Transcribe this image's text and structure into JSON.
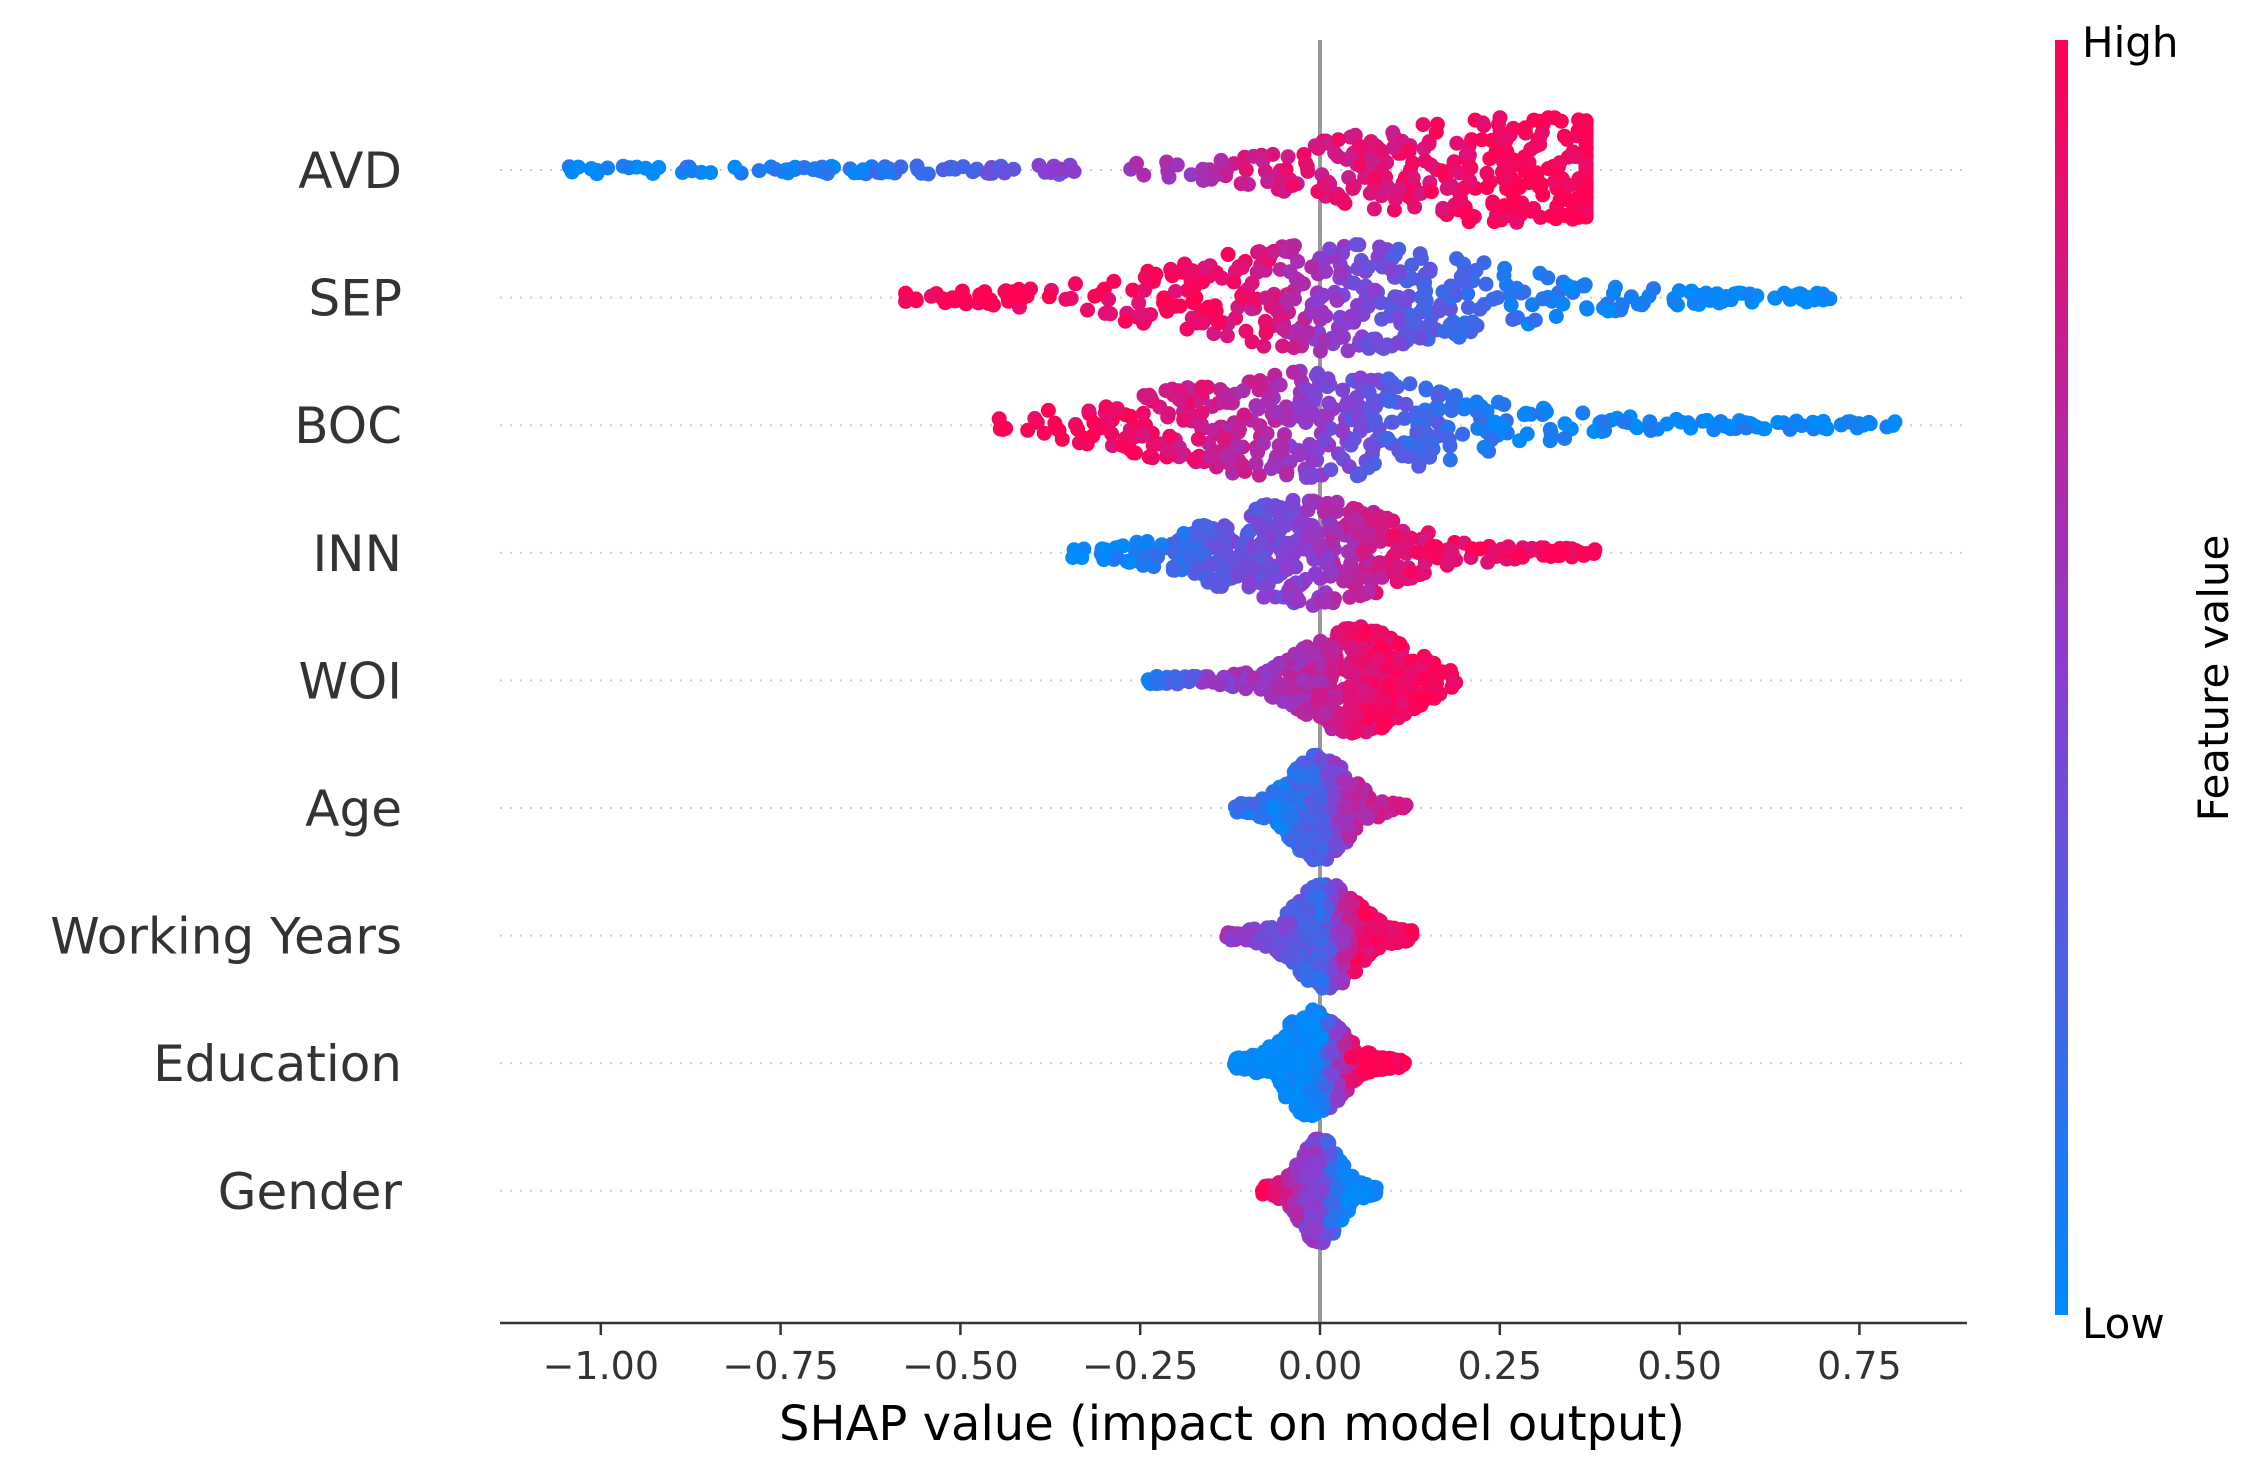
{
  "chart_data": {
    "type": "scatter",
    "subtype": "shap-beeswarm",
    "title": "",
    "xlabel": "SHAP value (impact on model output)",
    "xlim": [
      -1.15,
      0.9
    ],
    "xticks": [
      -1.0,
      -0.75,
      -0.5,
      -0.25,
      0.0,
      0.25,
      0.5,
      0.75
    ],
    "xtick_labels": [
      "−1.00",
      "−0.75",
      "−0.50",
      "−0.25",
      "0.00",
      "0.25",
      "0.50",
      "0.75"
    ],
    "colorbar": {
      "title": "Feature value",
      "high_label": "High",
      "low_label": "Low",
      "high_color": "#ff0052",
      "mid_color": "#8a3ed1",
      "low_color": "#008bfb"
    },
    "features": [
      {
        "name": "AVD",
        "min": -1.05,
        "max": 0.37,
        "dense_center": 0.27,
        "samples": [
          {
            "shap": -1.05,
            "value": 0.0
          },
          {
            "shap": -0.85,
            "value": 0.05
          },
          {
            "shap": -0.75,
            "value": 0.1
          },
          {
            "shap": -0.65,
            "value": 0.1
          },
          {
            "shap": -0.5,
            "value": 0.3
          },
          {
            "shap": -0.35,
            "value": 0.5
          },
          {
            "shap": -0.2,
            "value": 0.6
          },
          {
            "shap": -0.1,
            "value": 0.8
          },
          {
            "shap": 0.0,
            "value": 0.85
          },
          {
            "shap": 0.1,
            "value": 0.85
          },
          {
            "shap": 0.2,
            "value": 0.95
          },
          {
            "shap": 0.27,
            "value": 1.0
          },
          {
            "shap": 0.35,
            "value": 1.0
          }
        ]
      },
      {
        "name": "SEP",
        "min": -0.58,
        "max": 0.72,
        "dense_center": 0.02,
        "samples": [
          {
            "shap": -0.58,
            "value": 1.0
          },
          {
            "shap": -0.45,
            "value": 1.0
          },
          {
            "shap": -0.35,
            "value": 0.95
          },
          {
            "shap": -0.2,
            "value": 0.95
          },
          {
            "shap": -0.08,
            "value": 0.85
          },
          {
            "shap": 0.0,
            "value": 0.55
          },
          {
            "shap": 0.05,
            "value": 0.45
          },
          {
            "shap": 0.15,
            "value": 0.3
          },
          {
            "shap": 0.3,
            "value": 0.1
          },
          {
            "shap": 0.45,
            "value": 0.05
          },
          {
            "shap": 0.6,
            "value": 0.0
          },
          {
            "shap": 0.72,
            "value": 0.0
          }
        ]
      },
      {
        "name": "BOC",
        "min": -0.45,
        "max": 0.8,
        "dense_center": -0.02,
        "samples": [
          {
            "shap": -0.45,
            "value": 1.0
          },
          {
            "shap": -0.3,
            "value": 0.95
          },
          {
            "shap": -0.15,
            "value": 0.8
          },
          {
            "shap": -0.05,
            "value": 0.6
          },
          {
            "shap": 0.0,
            "value": 0.5
          },
          {
            "shap": 0.1,
            "value": 0.3
          },
          {
            "shap": 0.25,
            "value": 0.1
          },
          {
            "shap": 0.4,
            "value": 0.05
          },
          {
            "shap": 0.55,
            "value": 0.05
          },
          {
            "shap": 0.7,
            "value": 0.0
          },
          {
            "shap": 0.8,
            "value": 0.0
          }
        ]
      },
      {
        "name": "INN",
        "min": -0.35,
        "max": 0.39,
        "dense_center": -0.02,
        "samples": [
          {
            "shap": -0.35,
            "value": 0.0
          },
          {
            "shap": -0.25,
            "value": 0.1
          },
          {
            "shap": -0.12,
            "value": 0.35
          },
          {
            "shap": -0.05,
            "value": 0.45
          },
          {
            "shap": 0.0,
            "value": 0.55
          },
          {
            "shap": 0.08,
            "value": 0.8
          },
          {
            "shap": 0.15,
            "value": 0.9
          },
          {
            "shap": 0.25,
            "value": 0.95
          },
          {
            "shap": 0.39,
            "value": 1.0
          }
        ]
      },
      {
        "name": "WOI",
        "min": -0.24,
        "max": 0.19,
        "dense_center": 0.05,
        "samples": [
          {
            "shap": -0.24,
            "value": 0.0
          },
          {
            "shap": -0.15,
            "value": 0.55
          },
          {
            "shap": -0.05,
            "value": 0.6
          },
          {
            "shap": 0.0,
            "value": 0.7
          },
          {
            "shap": 0.05,
            "value": 0.9
          },
          {
            "shap": 0.1,
            "value": 0.95
          },
          {
            "shap": 0.19,
            "value": 1.0
          }
        ]
      },
      {
        "name": "Age",
        "min": -0.12,
        "max": 0.12,
        "dense_center": 0.0,
        "samples": [
          {
            "shap": -0.12,
            "value": 0.2
          },
          {
            "shap": -0.05,
            "value": 0.1
          },
          {
            "shap": 0.0,
            "value": 0.3
          },
          {
            "shap": 0.05,
            "value": 0.7
          },
          {
            "shap": 0.12,
            "value": 0.8
          }
        ]
      },
      {
        "name": "Working Years",
        "min": -0.13,
        "max": 0.13,
        "dense_center": 0.01,
        "samples": [
          {
            "shap": -0.13,
            "value": 0.6
          },
          {
            "shap": -0.05,
            "value": 0.4
          },
          {
            "shap": 0.0,
            "value": 0.2
          },
          {
            "shap": 0.05,
            "value": 0.9
          },
          {
            "shap": 0.13,
            "value": 1.0
          }
        ]
      },
      {
        "name": "Education",
        "min": -0.12,
        "max": 0.12,
        "dense_center": -0.01,
        "samples": [
          {
            "shap": -0.12,
            "value": 0.0
          },
          {
            "shap": -0.04,
            "value": 0.0
          },
          {
            "shap": 0.0,
            "value": 0.05
          },
          {
            "shap": 0.05,
            "value": 1.0
          },
          {
            "shap": 0.12,
            "value": 1.0
          }
        ]
      },
      {
        "name": "Gender",
        "min": -0.08,
        "max": 0.08,
        "dense_center": 0.0,
        "samples": [
          {
            "shap": -0.08,
            "value": 1.0
          },
          {
            "shap": -0.02,
            "value": 0.5
          },
          {
            "shap": 0.0,
            "value": 0.5
          },
          {
            "shap": 0.03,
            "value": 0.0
          },
          {
            "shap": 0.08,
            "value": 0.0
          }
        ]
      }
    ]
  }
}
